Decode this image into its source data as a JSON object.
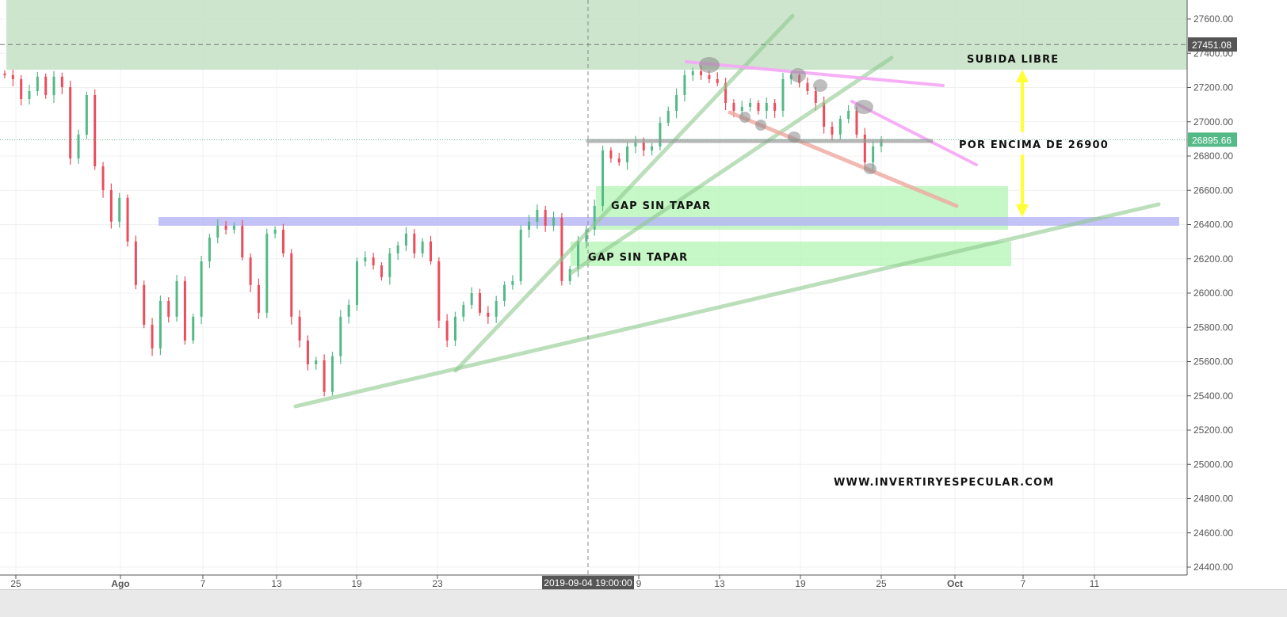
{
  "chart_data": {
    "type": "candlestick",
    "y_ticks": [
      24400,
      24600,
      24800,
      25000,
      25200,
      25400,
      25600,
      25800,
      26000,
      26200,
      26400,
      26600,
      26800,
      27000,
      27200,
      27400,
      27600
    ],
    "ylim": [
      24330,
      27710
    ],
    "x_tick_labels": [
      "25",
      "Ago",
      "7",
      "13",
      "19",
      "23",
      "9",
      "13",
      "19",
      "25",
      "Oct",
      "7",
      "11"
    ],
    "crosshair_label": "2019-09-04 19:00:00",
    "price_labels": {
      "crosshair_price": "27451.08",
      "last_price": "26895.66"
    },
    "closes": [
      27272,
      27249,
      27133,
      27179,
      27263,
      27156,
      27263,
      27202,
      26786,
      26925,
      27156,
      26740,
      26601,
      26417,
      26555,
      26301,
      26047,
      25815,
      25677,
      25954,
      25862,
      26070,
      25723,
      25862,
      26185,
      26324,
      26393,
      26370,
      26393,
      26208,
      26047,
      25885,
      26347,
      26370,
      26232,
      25862,
      25723,
      25584,
      25607,
      25423,
      25631,
      25862,
      25931,
      26185,
      26208,
      26162,
      26093,
      26232,
      26278,
      26347,
      26232,
      26301,
      26185,
      25839,
      25723,
      25862,
      25931,
      26000,
      25885,
      25862,
      25954,
      26047,
      26070,
      26370,
      26417,
      26486,
      26393,
      26440,
      26070,
      26139,
      26301,
      26370,
      26509,
      26833,
      26786,
      26763,
      26856,
      26879,
      26833,
      26856,
      26994,
      27064,
      27156,
      27272,
      27295,
      27272,
      27249,
      27226,
      27110,
      27064,
      27087,
      27110,
      27064,
      27110,
      27064,
      27249,
      27272,
      27226,
      27179,
      27110,
      26971,
      26925,
      27017,
      27064,
      26925,
      26763,
      26856,
      26895
    ],
    "grid": true,
    "colors": {
      "up": "#53b987",
      "down": "#eb4d5c",
      "resistance_zone": "#c8e2c8",
      "gap_zone": "#b8f5b8",
      "support_band": "#b4b4f5",
      "trendline": "#8fc98f",
      "pink": "#f5a8f5",
      "red": "#f0a8a0",
      "arrow": "#ffff33",
      "last_price": "#53b987",
      "crosshair_label": "#555555"
    }
  },
  "annotations": {
    "subida_libre": "SUBIDA LIBRE",
    "por_encima": "POR ENCIMA DE 26900",
    "gap1": "GAP SIN TAPAR",
    "gap2": "GAP SIN TAPAR",
    "website": "WWW.INVERTIRYESPECULAR.COM"
  }
}
